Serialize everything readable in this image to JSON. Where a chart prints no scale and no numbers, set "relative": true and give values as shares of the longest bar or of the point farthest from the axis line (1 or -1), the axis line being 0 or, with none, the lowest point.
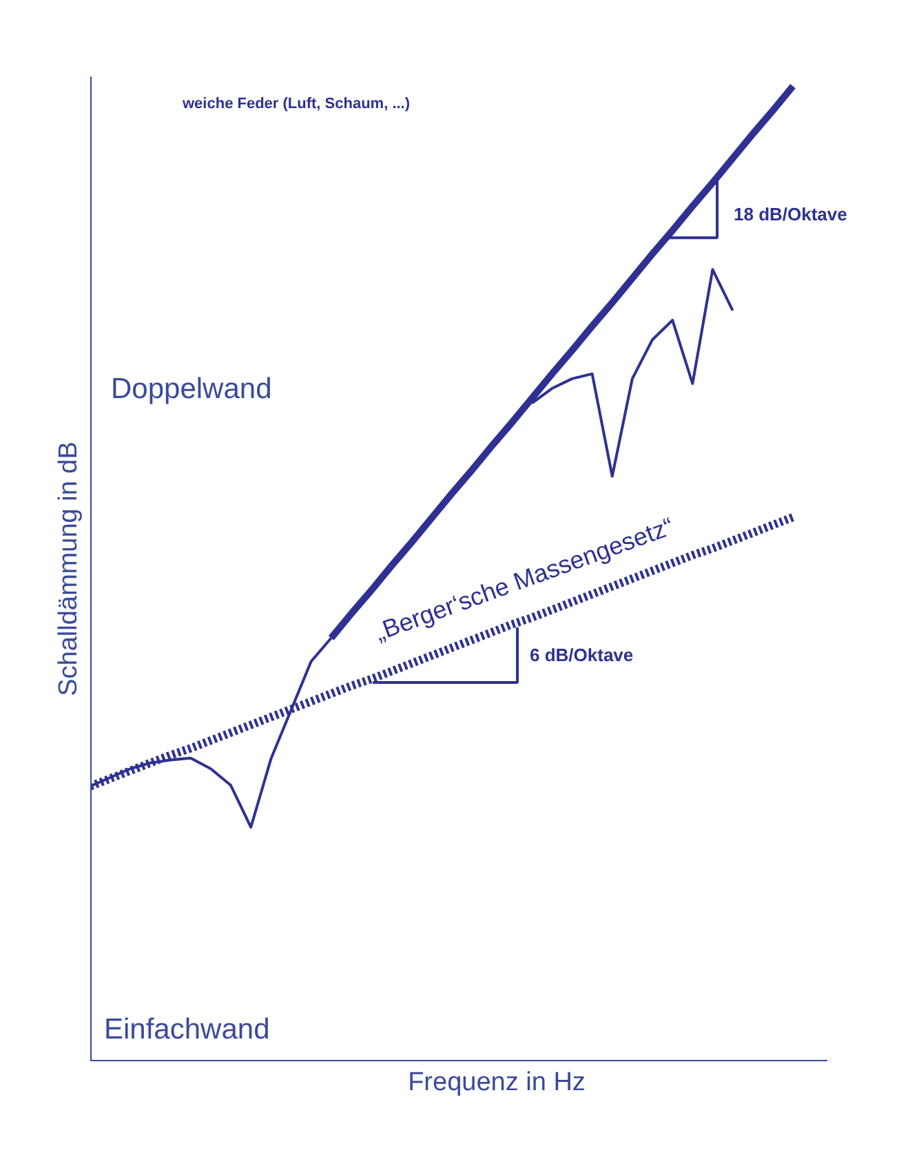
{
  "chart_data": {
    "type": "line",
    "relative": true,
    "xlabel": "Frequenz in Hz",
    "ylabel": "Schalldämmung in dB",
    "categories": [
      null,
      null,
      null,
      null,
      null,
      null,
      null,
      null,
      null,
      null,
      null,
      null,
      null,
      null,
      null,
      null,
      null,
      null,
      null,
      null,
      null,
      null,
      null,
      null,
      null,
      null,
      null,
      null,
      null,
      null,
      null,
      null,
      null,
      null,
      null,
      null
    ],
    "series": [
      {
        "color": "#2e3192",
        "line_style": "dotted",
        "values": [
          0.282,
          0.29,
          0.298,
          0.306,
          0.314,
          0.321,
          0.329,
          0.337,
          0.345,
          0.353,
          0.361,
          0.369,
          0.377,
          0.385,
          0.392,
          0.4,
          0.408,
          0.416,
          0.424,
          0.432,
          0.44,
          0.448,
          0.455,
          0.463,
          0.471,
          0.479,
          0.487,
          0.495,
          0.503,
          0.511,
          0.519,
          0.526,
          0.534,
          0.542,
          0.55,
          0.558
        ]
      },
      {
        "color": "#2e3192",
        "line_style": "solid",
        "values": [
          0.282,
          0.291,
          0.3,
          0.306,
          0.309,
          0.311,
          0.3,
          0.283,
          0.24,
          0.31,
          0.36,
          0.41,
          0.434,
          null,
          null,
          null,
          null,
          null,
          null,
          null,
          null,
          null,
          null,
          null,
          null,
          null,
          null,
          null,
          null,
          null,
          null,
          null,
          null,
          null,
          null,
          null
        ]
      },
      {
        "color": "#2e3192",
        "line_style": "solid",
        "values": [
          null,
          null,
          null,
          null,
          null,
          null,
          null,
          null,
          null,
          null,
          null,
          null,
          0.434,
          0.459,
          0.483,
          0.508,
          0.532,
          0.557,
          0.582,
          0.606,
          0.631,
          0.655,
          0.68,
          0.705,
          0.729,
          0.754,
          0.778,
          0.803,
          0.828,
          0.852,
          0.877,
          0.901,
          0.926,
          0.951,
          0.975,
          1.0
        ]
      },
      {
        "color": "#2e3192",
        "line_style": "solid",
        "values": [
          null,
          null,
          null,
          null,
          null,
          null,
          null,
          null,
          null,
          null,
          null,
          null,
          null,
          null,
          null,
          null,
          null,
          null,
          null,
          null,
          null,
          null,
          0.675,
          0.69,
          0.7,
          0.705,
          0.6,
          0.7,
          0.74,
          0.76,
          0.695,
          0.812,
          0.77,
          null,
          null,
          null
        ]
      }
    ],
    "annotations": [
      "„Berger‘sche Massengesetz“",
      "18 dB/Oktave",
      "6 dB/Oktave",
      "weiche Feder (Luft, Schaum, ...)",
      "Doppelwand",
      "Einfachwand"
    ]
  }
}
